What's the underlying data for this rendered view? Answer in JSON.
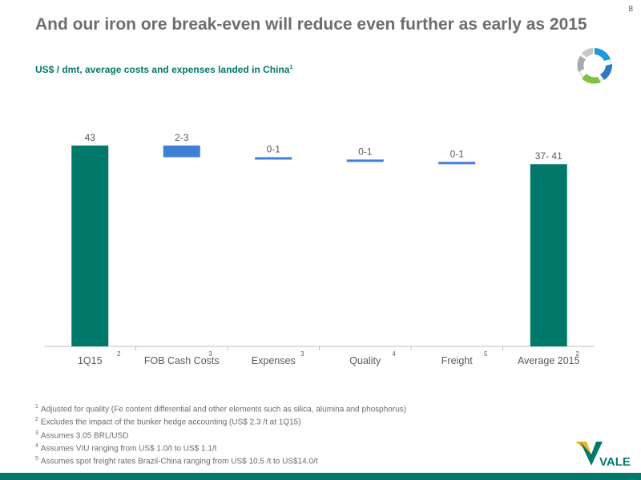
{
  "page_number": "8",
  "title": "And our iron ore break-even will reduce even further as early as 2015",
  "subtitle": "US$ / dmt, average costs and expenses landed in China",
  "subtitle_note": "1",
  "colors": {
    "total_bar": "#00796b",
    "delta_bar": "#3f7fd6",
    "axis": "#bfbfbf",
    "label": "#595959"
  },
  "chart_data": {
    "type": "bar",
    "subtype": "waterfall",
    "title": "",
    "ylim": [
      0,
      50
    ],
    "categories": [
      {
        "label": "1Q15",
        "note": "2"
      },
      {
        "label": "FOB Cash Costs",
        "note": "3"
      },
      {
        "label": "Expenses",
        "note": "3"
      },
      {
        "label": "Quality",
        "note": "4"
      },
      {
        "label": "Freight",
        "note": "5"
      },
      {
        "label": "Average 2015",
        "note": "2"
      }
    ],
    "bars": [
      {
        "kind": "total",
        "base": 0,
        "value": 43,
        "label": "43"
      },
      {
        "kind": "delta",
        "base": 40.5,
        "value": 2.5,
        "label": "2-3"
      },
      {
        "kind": "delta",
        "base": 40.0,
        "value": 0.5,
        "label": "0-1"
      },
      {
        "kind": "delta",
        "base": 39.5,
        "value": 0.5,
        "label": "0-1"
      },
      {
        "kind": "delta",
        "base": 39.0,
        "value": 0.5,
        "label": "0-1"
      },
      {
        "kind": "total",
        "base": 0,
        "value": 39,
        "label": "37- 41"
      }
    ]
  },
  "footnotes": [
    {
      "num": "1",
      "text": "Adjusted for quality (Fe content differential and other elements such as silica, alumina and phosphorus)"
    },
    {
      "num": "2",
      "text": "Excludes the impact of the bunker hedge  accounting (US$ 2.3 /t at 1Q15)"
    },
    {
      "num": "3",
      "text": "Assumes 3.05 BRL/USD"
    },
    {
      "num": "4",
      "text": "Assumes VIU ranging from US$ 1.0/t to US$ 1.1/t"
    },
    {
      "num": "5",
      "text": "Assumes spot freight rates Brazil-China ranging from US$ 10.5 /t to US$14.0/t"
    }
  ],
  "brand": {
    "name": "VALE",
    "icon": "recycle-arrows-icon"
  }
}
